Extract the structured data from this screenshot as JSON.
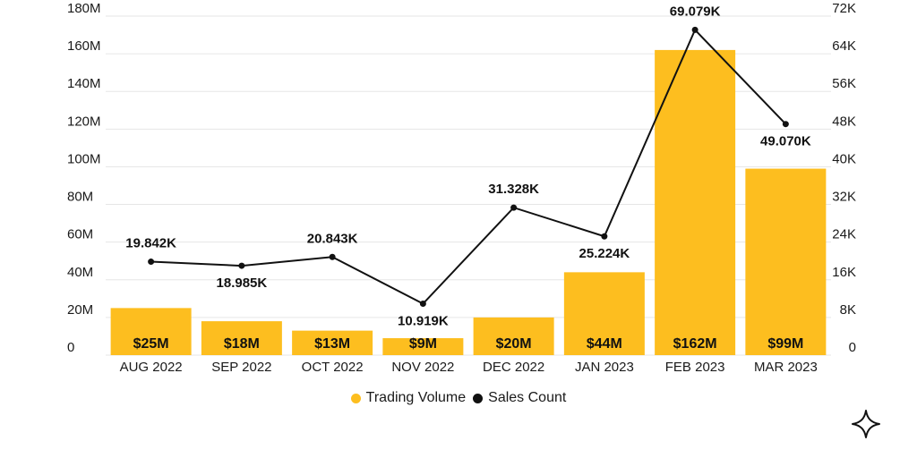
{
  "chart_data": {
    "type": "bar+line",
    "categories": [
      "AUG 2022",
      "SEP 2022",
      "OCT 2022",
      "NOV 2022",
      "DEC 2022",
      "JAN 2023",
      "FEB 2023",
      "MAR 2023"
    ],
    "series": [
      {
        "name": "Trading Volume",
        "type": "bar",
        "axis": "left",
        "values": [
          25,
          18,
          13,
          9,
          20,
          44,
          162,
          99
        ],
        "labels": [
          "$25M",
          "$18M",
          "$13M",
          "$9M",
          "$20M",
          "$44M",
          "$162M",
          "$99M"
        ]
      },
      {
        "name": "Sales Count",
        "type": "line",
        "axis": "right",
        "values": [
          19.842,
          18.985,
          20.843,
          10.919,
          31.328,
          25.224,
          69.079,
          49.07
        ],
        "labels": [
          "19.842K",
          "18.985K",
          "20.843K",
          "10.919K",
          "31.328K",
          "25.224K",
          "69.079K",
          "49.070K"
        ]
      }
    ],
    "y_left": {
      "ylim": [
        0,
        180
      ],
      "ticks": [
        0,
        20,
        40,
        60,
        80,
        100,
        120,
        140,
        160,
        180
      ],
      "tick_labels": [
        "0",
        "20M",
        "40M",
        "60M",
        "80M",
        "100M",
        "120M",
        "140M",
        "160M",
        "180M"
      ]
    },
    "y_right": {
      "ylim": [
        0,
        72
      ],
      "ticks": [
        0,
        8,
        16,
        24,
        32,
        40,
        48,
        56,
        64,
        72
      ],
      "tick_labels": [
        "0",
        "8K",
        "16K",
        "24K",
        "32K",
        "40K",
        "48K",
        "56K",
        "64K",
        "72K"
      ]
    },
    "legend_position": "bottom-center",
    "grid": true
  },
  "colors": {
    "bar": "#fdbe1f",
    "line": "#111111",
    "grid": "#e6e6e6"
  },
  "legend": {
    "items": [
      {
        "label": "Trading Volume",
        "color": "#fdbe1f"
      },
      {
        "label": "Sales Count",
        "color": "#111111"
      }
    ]
  },
  "icons": {
    "corner": "sparkle-icon"
  }
}
